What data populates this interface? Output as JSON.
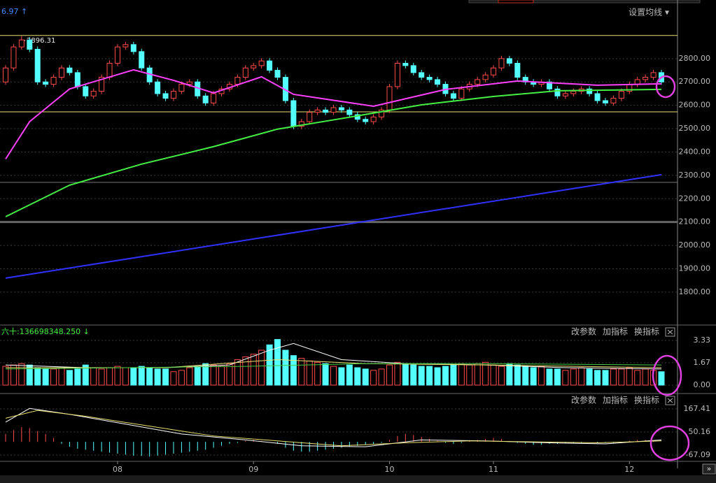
{
  "header": {
    "left_value": "6.97 ↑",
    "ma_button": "设置均线 ▾"
  },
  "chart_data": [
    {
      "type": "candlestick",
      "categories": [
        null,
        null,
        null,
        null,
        null,
        null,
        null,
        null,
        null,
        null,
        null,
        null,
        null,
        null,
        "08",
        null,
        null,
        null,
        null,
        null,
        null,
        null,
        null,
        null,
        null,
        null,
        null,
        null,
        null,
        null,
        null,
        "09",
        null,
        null,
        null,
        null,
        null,
        null,
        null,
        null,
        null,
        null,
        null,
        null,
        null,
        null,
        null,
        null,
        "10",
        null,
        null,
        null,
        null,
        null,
        null,
        null,
        null,
        null,
        null,
        null,
        null,
        "11",
        null,
        null,
        null,
        null,
        null,
        null,
        null,
        null,
        null,
        null,
        null,
        null,
        null,
        null,
        null,
        null,
        "12",
        null,
        null,
        null,
        null
      ],
      "open": [
        2700,
        2760,
        2850,
        2880,
        2840,
        2700,
        2690,
        2720,
        2760,
        2740,
        2680,
        2640,
        2660,
        2720,
        2780,
        2850,
        2860,
        2830,
        2760,
        2700,
        2650,
        2630,
        2660,
        2690,
        2700,
        2640,
        2610,
        2650,
        2670,
        2690,
        2720,
        2760,
        2770,
        2790,
        2750,
        2720,
        2620,
        2510,
        2530,
        2570,
        2580,
        2570,
        2590,
        2580,
        2560,
        2540,
        2530,
        2550,
        2580,
        2680,
        2780,
        2770,
        2740,
        2720,
        2710,
        2690,
        2650,
        2630,
        2670,
        2690,
        2710,
        2730,
        2760,
        2800,
        2780,
        2720,
        2700,
        2690,
        2700,
        2670,
        2640,
        2650,
        2660,
        2670,
        2650,
        2620,
        2610,
        2630,
        2660,
        2690,
        2710,
        2720,
        2740
      ],
      "high": [
        2772,
        2862,
        2896.31,
        2892,
        2852,
        2712,
        2732,
        2772,
        2772,
        2752,
        2692,
        2672,
        2732,
        2792,
        2862,
        2872,
        2872,
        2842,
        2772,
        2712,
        2662,
        2672,
        2702,
        2712,
        2712,
        2652,
        2662,
        2682,
        2702,
        2732,
        2772,
        2782,
        2802,
        2802,
        2762,
        2732,
        2632,
        2542,
        2582,
        2592,
        2592,
        2602,
        2602,
        2592,
        2572,
        2552,
        2562,
        2592,
        2692,
        2792,
        2792,
        2782,
        2752,
        2732,
        2722,
        2702,
        2662,
        2682,
        2702,
        2722,
        2742,
        2772,
        2812,
        2812,
        2792,
        2732,
        2712,
        2712,
        2712,
        2682,
        2662,
        2672,
        2682,
        2682,
        2662,
        2632,
        2642,
        2672,
        2702,
        2722,
        2732,
        2752,
        2752
      ],
      "low": [
        2688,
        2748,
        2838,
        2828,
        2688,
        2678,
        2678,
        2708,
        2728,
        2668,
        2628,
        2628,
        2648,
        2708,
        2768,
        2838,
        2818,
        2748,
        2688,
        2638,
        2618,
        2618,
        2648,
        2678,
        2628,
        2598,
        2598,
        2638,
        2658,
        2678,
        2708,
        2748,
        2758,
        2738,
        2708,
        2608,
        2498,
        2498,
        2518,
        2558,
        2558,
        2558,
        2568,
        2548,
        2528,
        2518,
        2518,
        2538,
        2568,
        2668,
        2758,
        2728,
        2708,
        2698,
        2678,
        2638,
        2618,
        2618,
        2658,
        2678,
        2698,
        2718,
        2748,
        2768,
        2708,
        2688,
        2678,
        2678,
        2658,
        2628,
        2628,
        2638,
        2648,
        2638,
        2608,
        2598,
        2598,
        2618,
        2648,
        2678,
        2698,
        2708,
        2688
      ],
      "close": [
        2760,
        2850,
        2880,
        2840,
        2700,
        2690,
        2720,
        2760,
        2740,
        2680,
        2640,
        2660,
        2720,
        2780,
        2850,
        2860,
        2830,
        2760,
        2700,
        2650,
        2630,
        2660,
        2690,
        2700,
        2640,
        2610,
        2650,
        2670,
        2690,
        2720,
        2760,
        2770,
        2790,
        2750,
        2720,
        2620,
        2510,
        2530,
        2570,
        2580,
        2570,
        2590,
        2580,
        2560,
        2540,
        2530,
        2550,
        2580,
        2680,
        2780,
        2770,
        2740,
        2720,
        2710,
        2690,
        2650,
        2630,
        2670,
        2690,
        2710,
        2730,
        2760,
        2800,
        2780,
        2720,
        2700,
        2690,
        2700,
        2670,
        2640,
        2650,
        2660,
        2670,
        2650,
        2620,
        2610,
        2630,
        2660,
        2690,
        2710,
        2720,
        2740,
        2700
      ],
      "up_color": "#ff4a4a",
      "down_color": "#54ffff",
      "ylim": [
        1665,
        3027
      ],
      "yticks": [
        {
          "value": 1800,
          "label": "1800.00"
        },
        {
          "value": 1900,
          "label": "1900.00"
        },
        {
          "value": 2000,
          "label": "2000.00"
        },
        {
          "value": 2100,
          "label": "2100.00"
        },
        {
          "value": 2200,
          "label": "2200.00"
        },
        {
          "value": 2300,
          "label": "2300.00"
        },
        {
          "value": 2400,
          "label": "2400.00"
        },
        {
          "value": 2500,
          "label": "2500.00"
        },
        {
          "value": 2600,
          "label": "2600.00"
        },
        {
          "value": 2700,
          "label": "2700.00"
        },
        {
          "value": 2800,
          "label": "2800.00"
        }
      ],
      "grid": true,
      "hlines": [
        {
          "value": 2899,
          "color": "#e8e070"
        },
        {
          "value": 2572,
          "color": "#e8e070"
        },
        {
          "value": 2270,
          "color": "#777777"
        },
        {
          "value": 2100,
          "color": "#666666"
        }
      ],
      "lines": [
        {
          "color": "#ff40ff",
          "x": [
            0,
            3,
            8,
            16,
            21,
            26,
            32,
            36,
            46,
            55,
            64,
            74,
            82
          ],
          "values": [
            2370,
            2530,
            2670,
            2752,
            2707,
            2653,
            2722,
            2647,
            2596,
            2668,
            2704,
            2686,
            2692
          ]
        },
        {
          "color": "#44ee44",
          "x": [
            0,
            8,
            17,
            26,
            34,
            43,
            52,
            61,
            69,
            82
          ],
          "values": [
            2123,
            2258,
            2348,
            2423,
            2498,
            2549,
            2602,
            2638,
            2662,
            2668
          ]
        },
        {
          "color": "#3030ff",
          "x": [
            0,
            82
          ],
          "values": [
            1860,
            2303
          ]
        }
      ]
    },
    {
      "type": "bar",
      "header": "六十:136698348.250 ↓",
      "buttons": [
        "改参数",
        "加指标",
        "换指标"
      ],
      "values": [
        1.4,
        1.5,
        1.6,
        1.5,
        1.3,
        1.2,
        1.2,
        1.3,
        1.1,
        1.2,
        1.5,
        1.3,
        1.2,
        1.3,
        1.4,
        1.3,
        1.3,
        1.4,
        1.3,
        1.2,
        1.2,
        1.0,
        1.1,
        1.3,
        1.4,
        1.6,
        1.5,
        1.4,
        1.6,
        1.9,
        2.1,
        2.3,
        2.6,
        3.0,
        3.4,
        2.6,
        2.2,
        2.0,
        1.8,
        1.7,
        1.6,
        1.4,
        1.3,
        1.5,
        1.3,
        1.2,
        1.1,
        1.2,
        1.5,
        1.7,
        1.6,
        1.5,
        1.4,
        1.4,
        1.3,
        1.4,
        1.5,
        1.6,
        1.5,
        1.6,
        1.7,
        1.5,
        1.4,
        1.6,
        1.5,
        1.4,
        1.3,
        1.4,
        1.2,
        1.2,
        1.1,
        1.2,
        1.3,
        1.2,
        1.1,
        1.1,
        1.2,
        1.2,
        1.3,
        1.1,
        1.2,
        1.1,
        1.0
      ],
      "ylim": [
        -0.47,
        4.37
      ],
      "yticks": [
        {
          "value": 0,
          "label": "0.00"
        },
        1.67,
        3.33
      ],
      "lines": [
        {
          "color": "#ffffff",
          "x": [
            0,
            10,
            20,
            28,
            33,
            36,
            42,
            50,
            60,
            70,
            82
          ],
          "values": [
            1.5,
            1.3,
            1.3,
            1.5,
            2.6,
            3.1,
            1.9,
            1.6,
            1.5,
            1.3,
            1.2
          ]
        },
        {
          "color": "#e8e070",
          "x": [
            0,
            20,
            34,
            45,
            60,
            82
          ],
          "values": [
            1.3,
            1.3,
            1.9,
            1.6,
            1.5,
            1.3
          ]
        },
        {
          "color": "#44cc44",
          "x": [
            0,
            30,
            45,
            60,
            82
          ],
          "values": [
            1.2,
            1.4,
            1.6,
            1.6,
            1.5
          ]
        }
      ]
    },
    {
      "type": "bar",
      "buttons": [
        "改参数",
        "加指标",
        "换指标"
      ],
      "values": [
        40,
        60,
        75,
        70,
        55,
        40,
        20,
        -10,
        -25,
        -35,
        -40,
        -45,
        -50,
        -55,
        -60,
        -65,
        -70,
        -72,
        -75,
        -70,
        -65,
        -60,
        -55,
        -50,
        -45,
        -40,
        -30,
        -20,
        -10,
        -5,
        5,
        10,
        5,
        0,
        -10,
        -30,
        -45,
        -50,
        -50,
        -45,
        -40,
        -35,
        -30,
        -25,
        -20,
        -15,
        -10,
        -5,
        10,
        30,
        40,
        35,
        25,
        15,
        5,
        -5,
        -10,
        -5,
        5,
        10,
        15,
        20,
        15,
        5,
        -5,
        -10,
        -15,
        -15,
        -10,
        -10,
        -5,
        -5,
        -5,
        0,
        -5,
        -5,
        -5,
        0,
        5,
        10,
        10,
        5,
        0
      ],
      "up_color": "#ff4a4a",
      "down_color": "#54ffff",
      "ylim": [
        -99,
        238.5
      ],
      "yticks": [
        -67.09,
        50.16,
        167.41
      ],
      "lines": [
        {
          "color": "#ffffff",
          "x": [
            0,
            3,
            8,
            15,
            22,
            30,
            37,
            45,
            52,
            60,
            68,
            75,
            82
          ],
          "values": [
            100,
            170,
            140,
            90,
            40,
            10,
            -20,
            -25,
            10,
            5,
            -5,
            -10,
            10
          ]
        },
        {
          "color": "#e8e070",
          "x": [
            0,
            4,
            10,
            18,
            26,
            34,
            42,
            50,
            58,
            66,
            74,
            82
          ],
          "values": [
            120,
            160,
            130,
            80,
            30,
            5,
            -20,
            -5,
            5,
            0,
            -5,
            5
          ]
        }
      ]
    }
  ]
}
